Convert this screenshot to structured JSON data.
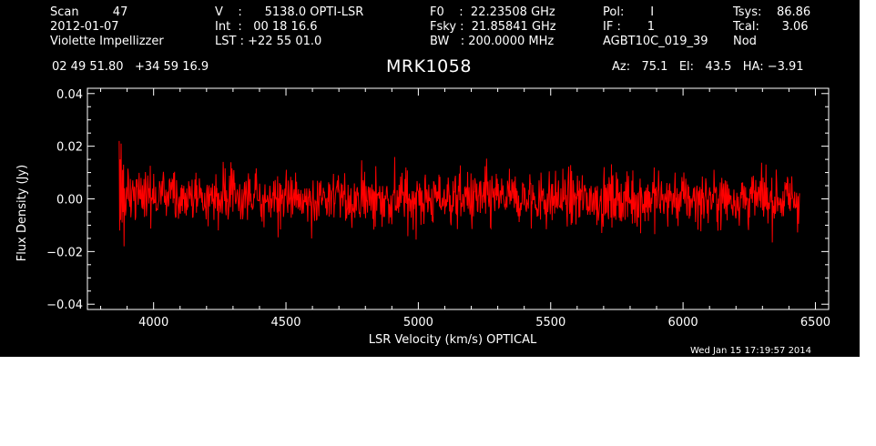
{
  "header": {
    "scan": "Scan         47",
    "date": "2012-01-07",
    "observer": "Violette Impellizzer",
    "v": "V    :      5138.0 OPTI-LSR",
    "int": "Int  :   00 18 16.6",
    "lst": "LST : +22 55 01.0",
    "f0": "F0    :  22.23508 GHz",
    "fsky": "Fsky :  21.85841 GHz",
    "bw": "BW   : 200.0000 MHz",
    "pol": "Pol:       I",
    "if": "IF :       1",
    "proj": "AGBT10C_019_39",
    "tsys": "Tsys:    86.86",
    "tcal": "Tcal:      3.06",
    "mode": "Nod",
    "coords": "02 49 51.80   +34 59 16.9",
    "source": "MRK1058",
    "azelha": "Az:   75.1   El:   43.5   HA: −3.91",
    "timestamp": "Wed Jan 15 17:19:57 2014"
  },
  "colors": {
    "background": "#000000",
    "axes": "#ffffff",
    "trace": "#ff0000"
  },
  "chart_data": {
    "type": "line",
    "xlabel": "LSR Velocity (km/s) OPTICAL",
    "ylabel": "Flux Density (Jy)",
    "xlim": [
      3750,
      6550
    ],
    "ylim": [
      -0.042,
      0.042
    ],
    "xticks": [
      4000,
      4500,
      5000,
      5500,
      6000,
      6500
    ],
    "yticks": [
      -0.04,
      -0.02,
      0.0,
      0.02,
      0.04
    ],
    "xtick_labels": [
      "4000",
      "4500",
      "5000",
      "5500",
      "6000",
      "6500"
    ],
    "ytick_labels": [
      "−0.04",
      "−0.02",
      "0.00",
      "0.02",
      "0.04"
    ],
    "series": [
      {
        "color": "#ff0000",
        "x_start": 3870,
        "x_end": 6440,
        "noise_rms": 0.0075,
        "values": [
          0.022,
          -0.012,
          0.015,
          -0.008,
          0.021,
          0.0,
          -0.009,
          0.011,
          -0.005,
          0.013,
          -0.018,
          0.004
        ]
      }
    ]
  }
}
